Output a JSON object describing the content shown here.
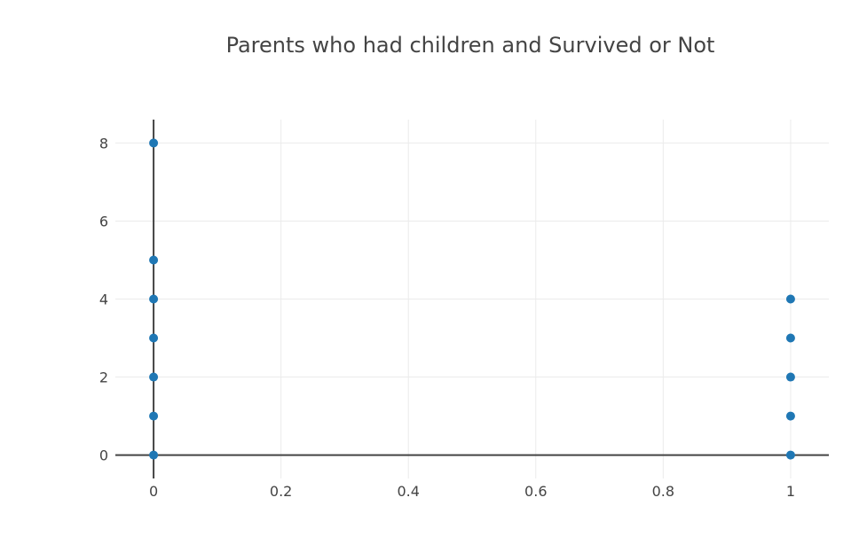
{
  "chart_data": {
    "type": "scatter",
    "title": "Parents who had children and Survived or Not",
    "xlabel": "",
    "ylabel": "",
    "xlim": [
      -0.06,
      1.06
    ],
    "ylim": [
      -0.6,
      8.6
    ],
    "x_ticks": [
      0,
      0.2,
      0.4,
      0.6,
      0.8,
      1
    ],
    "x_tick_labels": [
      "0",
      "0.2",
      "0.4",
      "0.6",
      "0.8",
      "1"
    ],
    "y_ticks": [
      0,
      2,
      4,
      6,
      8
    ],
    "y_tick_labels": [
      "0",
      "2",
      "4",
      "6",
      "8"
    ],
    "grid": true,
    "marker_color": "#1f77b4",
    "series": [
      {
        "points": [
          {
            "x": 0,
            "y": 0
          },
          {
            "x": 0,
            "y": 1
          },
          {
            "x": 0,
            "y": 2
          },
          {
            "x": 0,
            "y": 3
          },
          {
            "x": 0,
            "y": 4
          },
          {
            "x": 0,
            "y": 5
          },
          {
            "x": 0,
            "y": 8
          },
          {
            "x": 1,
            "y": 0
          },
          {
            "x": 1,
            "y": 1
          },
          {
            "x": 1,
            "y": 2
          },
          {
            "x": 1,
            "y": 3
          },
          {
            "x": 1,
            "y": 4
          }
        ]
      }
    ]
  }
}
